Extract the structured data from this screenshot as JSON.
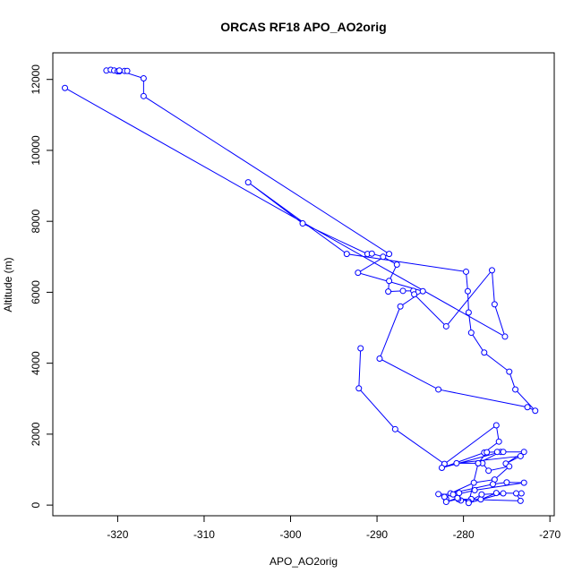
{
  "chart_data": {
    "type": "line",
    "title": "ORCAS RF18 APO_AO2orig",
    "xlabel": "APO_AO2orig",
    "ylabel": "Altitude (m)",
    "xlim": [
      -327.5,
      -269.5
    ],
    "ylim": [
      -300,
      12750
    ],
    "xticks": [
      -320,
      -310,
      -300,
      -290,
      -280,
      -270
    ],
    "yticks": [
      0,
      2000,
      4000,
      6000,
      8000,
      10000,
      12000
    ],
    "series_color": "#0000ff",
    "marker": "open-circle",
    "series": [
      {
        "points": [
          [
            -321.3,
            12250
          ],
          [
            -320.8,
            12270
          ],
          [
            -320.4,
            12250
          ],
          [
            -320.0,
            12230
          ],
          [
            -319.8,
            12230
          ],
          [
            -319.2,
            12240
          ],
          [
            -318.9,
            12240
          ],
          [
            -319.8,
            12250
          ],
          [
            -317.0,
            12030
          ],
          [
            -317.0,
            11530
          ],
          [
            -288.6,
            7080
          ],
          [
            -292.2,
            6550
          ],
          [
            -284.7,
            6030
          ],
          [
            -287.3,
            5600
          ],
          [
            -289.7,
            4130
          ],
          [
            -282.9,
            3260
          ],
          [
            -272.6,
            2760
          ],
          [
            -271.7,
            2660
          ],
          [
            -274.0,
            3260
          ],
          [
            -274.7,
            3760
          ],
          [
            -277.6,
            4300
          ],
          [
            -279.1,
            4860
          ],
          [
            -279.4,
            5430
          ],
          [
            -279.5,
            6030
          ],
          [
            -279.7,
            6580
          ],
          [
            -293.5,
            7080
          ],
          [
            -304.9,
            9100
          ],
          [
            -298.6,
            7940
          ],
          [
            -291.1,
            7080
          ],
          [
            -290.6,
            7090
          ],
          [
            -289.3,
            7000
          ],
          [
            -287.7,
            6780
          ],
          [
            -288.6,
            6320
          ],
          [
            -288.7,
            6020
          ],
          [
            -287.0,
            6040
          ],
          [
            -285.8,
            6040
          ],
          [
            -285.7,
            5940
          ],
          [
            -282.0,
            5040
          ],
          [
            -276.7,
            6620
          ],
          [
            -276.4,
            5660
          ],
          [
            -275.2,
            4750
          ],
          [
            -326.1,
            11760
          ]
        ]
      },
      {
        "points": [
          [
            -291.9,
            4420
          ],
          [
            -292.1,
            3290
          ],
          [
            -287.9,
            2140
          ],
          [
            -282.2,
            1160
          ],
          [
            -276.2,
            2250
          ],
          [
            -275.9,
            1790
          ],
          [
            -277.6,
            1480
          ],
          [
            -282.5,
            1050
          ],
          [
            -275.7,
            1500
          ],
          [
            -278.3,
            1180
          ],
          [
            -277.3,
            1490
          ],
          [
            -276.1,
            1500
          ],
          [
            -275.4,
            1500
          ],
          [
            -273.0,
            1500
          ],
          [
            -275.1,
            1170
          ],
          [
            -273.4,
            1380
          ],
          [
            -280.8,
            1180
          ],
          [
            -277.8,
            1180
          ],
          [
            -277.1,
            970
          ],
          [
            -274.7,
            1090
          ],
          [
            -276.4,
            720
          ],
          [
            -278.8,
            630
          ],
          [
            -281.5,
            330
          ],
          [
            -276.6,
            590
          ],
          [
            -275.0,
            640
          ],
          [
            -273.0,
            630
          ],
          [
            -278.7,
            420
          ],
          [
            -280.8,
            300
          ],
          [
            -282.9,
            310
          ],
          [
            -282.0,
            170
          ],
          [
            -282.2,
            230
          ],
          [
            -281.2,
            300
          ],
          [
            -280.5,
            340
          ],
          [
            -280.3,
            130
          ],
          [
            -279.1,
            170
          ],
          [
            -278.0,
            160
          ],
          [
            -276.2,
            340
          ],
          [
            -273.3,
            330
          ],
          [
            -273.9,
            330
          ],
          [
            -273.4,
            120
          ],
          [
            -280.6,
            170
          ],
          [
            -282.0,
            90
          ],
          [
            -280.7,
            200
          ],
          [
            -279.4,
            100
          ],
          [
            -277.9,
            300
          ],
          [
            -275.4,
            330
          ],
          [
            -279.4,
            60
          ],
          [
            -278.3,
            1180
          ]
        ]
      }
    ]
  }
}
